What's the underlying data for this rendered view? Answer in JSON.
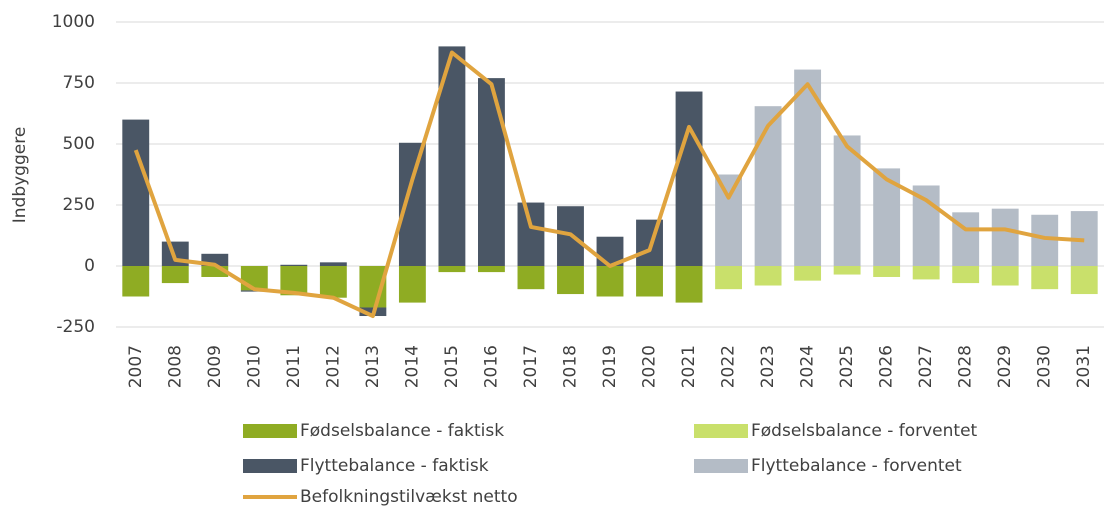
{
  "chart_data": {
    "type": "bar",
    "stacked": true,
    "y_label": "Indbyggere",
    "categories": [
      "2007",
      "2008",
      "2009",
      "2010",
      "2011",
      "2012",
      "2013",
      "2014",
      "2015",
      "2016",
      "2017",
      "2018",
      "2019",
      "2020",
      "2021",
      "2022",
      "2023",
      "2024",
      "2025",
      "2026",
      "2027",
      "2028",
      "2029",
      "2030",
      "2031"
    ],
    "series": [
      {
        "name": "Fødselsbalance - faktisk",
        "color": "#8fac23",
        "type": "bar",
        "values": [
          -125,
          -70,
          -45,
          -100,
          -120,
          -130,
          -170,
          -150,
          -25,
          -25,
          -95,
          -115,
          -125,
          -125,
          -150,
          null,
          null,
          null,
          null,
          null,
          null,
          null,
          null,
          null,
          null
        ]
      },
      {
        "name": "Fødselsbalance - forventet",
        "color": "#c9e06b",
        "type": "bar",
        "values": [
          null,
          null,
          null,
          null,
          null,
          null,
          null,
          null,
          null,
          null,
          null,
          null,
          null,
          null,
          null,
          -95,
          -80,
          -60,
          -35,
          -45,
          -55,
          -70,
          -80,
          -95,
          -115
        ]
      },
      {
        "name": "Flyttebalance - faktisk",
        "color": "#4a5665",
        "type": "bar",
        "values": [
          600,
          100,
          50,
          -5,
          5,
          15,
          -35,
          505,
          900,
          770,
          260,
          245,
          120,
          190,
          715,
          null,
          null,
          null,
          null,
          null,
          null,
          null,
          null,
          null,
          null
        ]
      },
      {
        "name": "Flyttebalance - forventet",
        "color": "#b4bcc6",
        "type": "bar",
        "values": [
          null,
          null,
          null,
          null,
          null,
          null,
          null,
          null,
          null,
          null,
          null,
          null,
          null,
          null,
          null,
          375,
          655,
          805,
          535,
          400,
          330,
          220,
          235,
          210,
          225
        ]
      },
      {
        "name": "Befolkningstilvækst netto",
        "color": "#e0a43f",
        "type": "line",
        "values": [
          475,
          25,
          5,
          -95,
          -110,
          -130,
          -205,
          355,
          875,
          745,
          160,
          130,
          0,
          65,
          570,
          280,
          575,
          745,
          490,
          355,
          270,
          150,
          150,
          115,
          105
        ]
      }
    ],
    "ylim": [
      -250,
      1000
    ],
    "yticks": [
      -250,
      0,
      250,
      500,
      750,
      1000
    ],
    "grid": true
  }
}
